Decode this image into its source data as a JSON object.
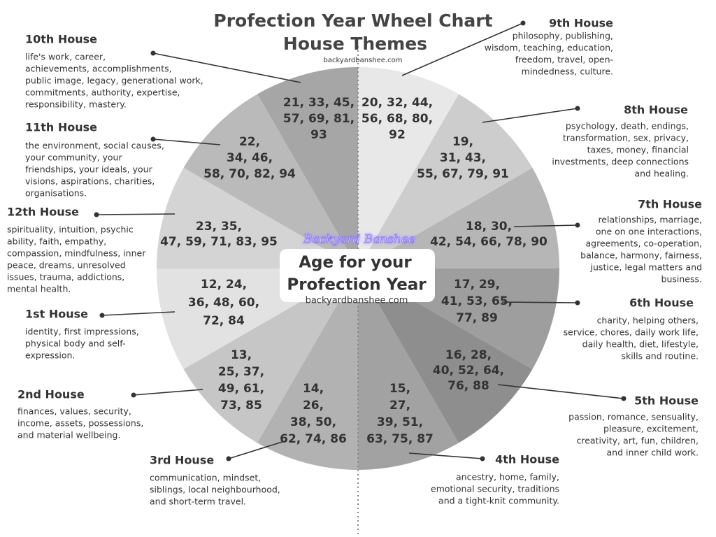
{
  "header": {
    "title_lines": [
      "Profection Year Wheel Chart",
      "House Themes"
    ],
    "url": "backyardbanshee.com"
  },
  "center": {
    "brand": "Backyard Banshee",
    "lines": [
      "Age for your",
      "Profection Year"
    ],
    "url": "backyardbanshee.com"
  },
  "houses": [
    {
      "name": "1st House",
      "description": [
        " identity, first impressions,",
        "physical body and self-",
        "expression."
      ],
      "ages": [
        "12, 24,",
        "36, 48, 60,",
        "72, 84"
      ]
    },
    {
      "name": "2nd House",
      "description": [
        "finances, values, security,",
        "income, assets, possessions,",
        "and material wellbeing."
      ],
      "ages": [
        "13,",
        "25, 37,",
        "49, 61,",
        "73, 85"
      ]
    },
    {
      "name": "3rd House",
      "description": [
        "communication, mindset,",
        "siblings, local neighbourhood,",
        "and short-term travel."
      ],
      "ages": [
        "14,",
        "26,",
        "38, 50,",
        "62, 74, 86"
      ]
    },
    {
      "name": "4th  House",
      "description": [
        "ancestry, home, family,",
        "emotional security, traditions",
        "and a tight-knit community."
      ],
      "ages": [
        "15,",
        "27,",
        "39, 51,",
        "63, 75, 87"
      ]
    },
    {
      "name": "5th House",
      "description": [
        "passion, romance, sensuality,",
        "pleasure, excitement,",
        "creativity, art, fun, children,",
        "and inner child work."
      ],
      "ages": [
        "16, 28,",
        "40, 52, 64,",
        "76, 88"
      ]
    },
    {
      "name": "6th House",
      "description": [
        "charity, helping others,",
        "service, chores, daily work life,",
        "daily health, diet, lifestyle,",
        "skills and routine."
      ],
      "ages": [
        "17, 29,",
        "41, 53, 65,",
        "77, 89"
      ]
    },
    {
      "name": "7th House",
      "description": [
        "relationships, marriage,",
        "one on one interactions,",
        "agreements, co-operation,",
        "balance, harmony, fairness,",
        "justice, legal matters and",
        "business."
      ],
      "ages": [
        "18, 30,",
        "42, 54, 66, 78, 90"
      ]
    },
    {
      "name": "8th House",
      "description": [
        "psychology, death, endings,",
        "transformation, sex, privacy,",
        "taxes, money, financial",
        "investments, deep connections",
        "and healing."
      ],
      "ages": [
        "19,",
        "31, 43,",
        "55, 67, 79, 91"
      ]
    },
    {
      "name": "9th House",
      "description": [
        "philosophy, publishing,",
        "wisdom, teaching, education,",
        "freedom, travel, open-",
        "mindedness, culture."
      ],
      "ages": [
        "20, 32, 44,",
        "56, 68, 80,",
        "92"
      ]
    },
    {
      "name": "10th House",
      "description": [
        "life's work, career,",
        "achievements, accomplishments,",
        "public image, legacy, generational work,",
        "commitments, authority, expertise,",
        "responsibility, mastery."
      ],
      "ages": [
        "21, 33, 45,",
        "57, 69, 81,",
        "93"
      ]
    },
    {
      "name": "11th House",
      "description": [
        "the environment, social causes,",
        "your community, your",
        "friendships, your ideals, your",
        "visions, aspirations, charities,",
        "organisations."
      ],
      "ages": [
        "22,",
        "34, 46,",
        "58, 70, 82, 94"
      ]
    },
    {
      "name": "12th House",
      "description": [
        "spirituality, intuition, psychic",
        "ability, faith, empathy,",
        "compassion, mindfulness, inner",
        "peace, dreams, unresolved",
        "issues, trauma, addictions,",
        "mental health."
      ],
      "ages": [
        "23, 35,",
        "47, 59, 71, 83, 95"
      ]
    }
  ]
}
